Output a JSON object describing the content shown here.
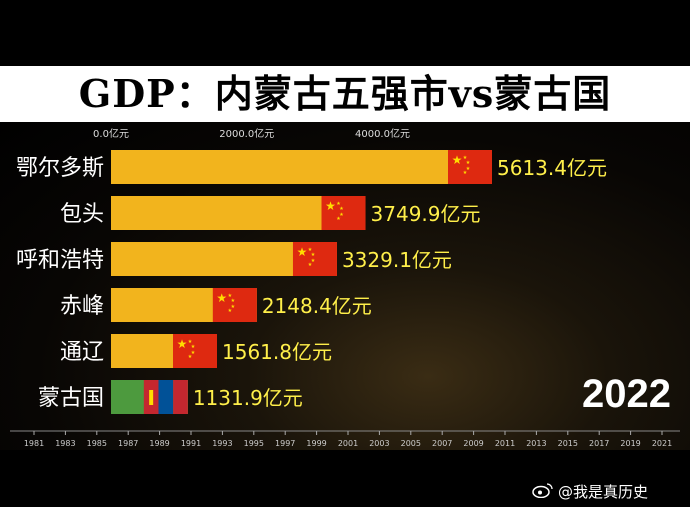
{
  "title": "GDP：内蒙古五强市vs蒙古国",
  "year": "2022",
  "watermark": "@我是真历史",
  "colors": {
    "bar": "#f2b41d",
    "value_label": "#ffef4a",
    "flag_red": "#de2910",
    "flag_yellow": "#ffde00",
    "mongolia_red": "#c4272f",
    "mongolia_blue": "#015197",
    "background": "#000000"
  },
  "chart_data": {
    "type": "bar",
    "orientation": "horizontal",
    "title": "GDP：内蒙古五强市vs蒙古国",
    "unit": "亿元",
    "categories": [
      "鄂尔多斯",
      "包头",
      "呼和浩特",
      "赤峰",
      "通辽",
      "蒙古国"
    ],
    "values": [
      5613.4,
      3749.9,
      3329.1,
      2148.4,
      1561.8,
      1131.9
    ],
    "value_labels": [
      "5613.4亿元",
      "3749.9亿元",
      "3329.1亿元",
      "2148.4亿元",
      "1561.8亿元",
      "1131.9亿元"
    ],
    "flags": [
      "china",
      "china",
      "china",
      "china",
      "china",
      "mongolia"
    ],
    "x_ticks": [
      "0.0亿元",
      "2000.0亿元",
      "4000.0亿元"
    ],
    "x_tick_values": [
      0,
      2000,
      4000
    ],
    "xlim": [
      0,
      5613.4
    ],
    "timeline": {
      "labels": [
        "1981",
        "1983",
        "1985",
        "1987",
        "1989",
        "1991",
        "1993",
        "1995",
        "1997",
        "1999",
        "2001",
        "2003",
        "2005",
        "2007",
        "2009",
        "2011",
        "2013",
        "2015",
        "2017",
        "2019",
        "2021"
      ],
      "current": "2022"
    }
  }
}
